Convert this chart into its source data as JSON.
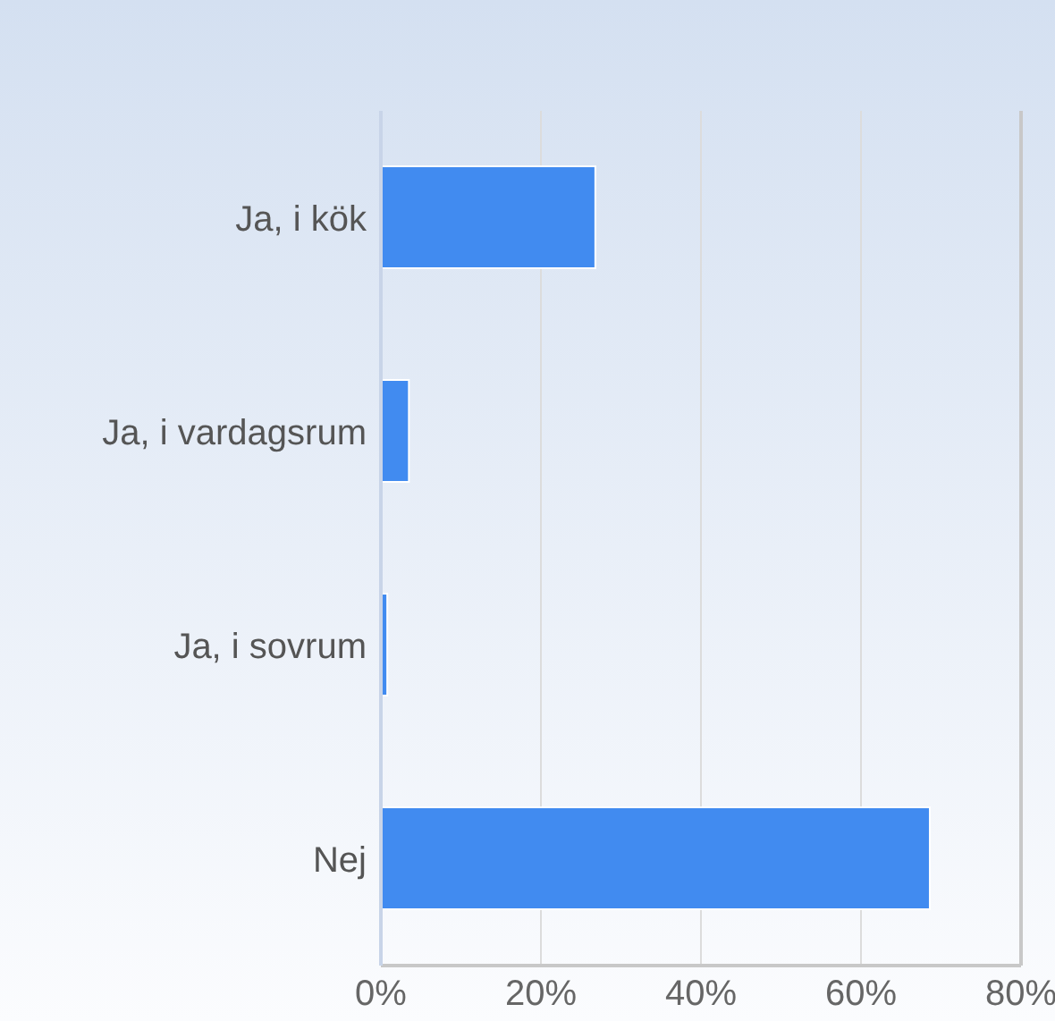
{
  "chart_data": {
    "type": "bar",
    "orientation": "horizontal",
    "categories": [
      "Ja, i kök",
      "Ja, i vardagsrum",
      "Ja, i sovrum",
      "Nej"
    ],
    "values": [
      26.8,
      3.5,
      0.8,
      68.6
    ],
    "color": "#418bf0",
    "xlim": [
      0,
      80
    ],
    "xticks": [
      {
        "value": 0,
        "label": "0%"
      },
      {
        "value": 20,
        "label": "20%"
      },
      {
        "value": 40,
        "label": "40%"
      },
      {
        "value": 60,
        "label": "60%"
      },
      {
        "value": 80,
        "label": "80%"
      }
    ],
    "grid": "x"
  }
}
